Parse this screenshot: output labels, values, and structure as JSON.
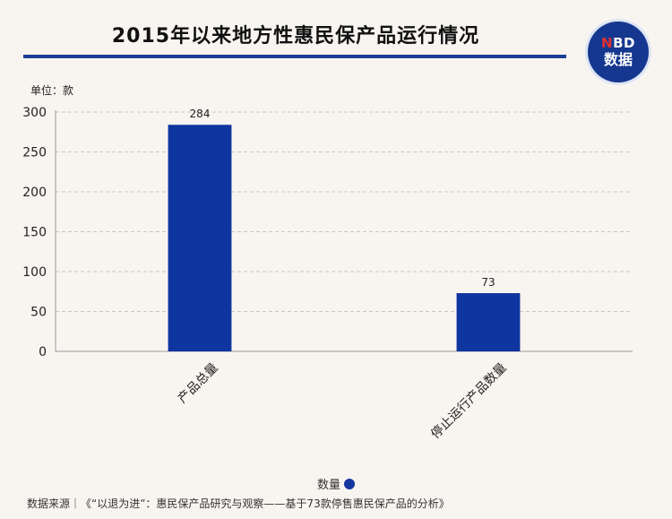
{
  "header": {
    "title": "2015年以来地方性惠民保产品运行情况"
  },
  "logo": {
    "line1_n": "N",
    "line1_rest": "BD",
    "line2": "数据"
  },
  "unit_label": "单位：款",
  "legend_label": "数量",
  "source_text": "数据来源｜《“以退为进”：惠民保产品研究与观察——基于73款停售惠民保产品的分析》",
  "colors": {
    "bar": "#0f35a0",
    "accent": "#1c3f94"
  },
  "chart_data": {
    "type": "bar",
    "title": "2015年以来地方性惠民保产品运行情况",
    "xlabel": "",
    "ylabel": "单位：款",
    "categories": [
      "产品总量",
      "停止运行产品数量"
    ],
    "series": [
      {
        "name": "数量",
        "values": [
          284,
          73
        ]
      }
    ],
    "data_labels": [
      "284",
      "73"
    ],
    "ylim": [
      0,
      300
    ],
    "yticks": [
      0,
      50,
      100,
      150,
      200,
      250,
      300
    ],
    "ytick_labels": [
      "0",
      "50",
      "100",
      "150",
      "200",
      "250",
      "300"
    ],
    "grid": "horizontal dashed",
    "legend": "bottom-center"
  }
}
